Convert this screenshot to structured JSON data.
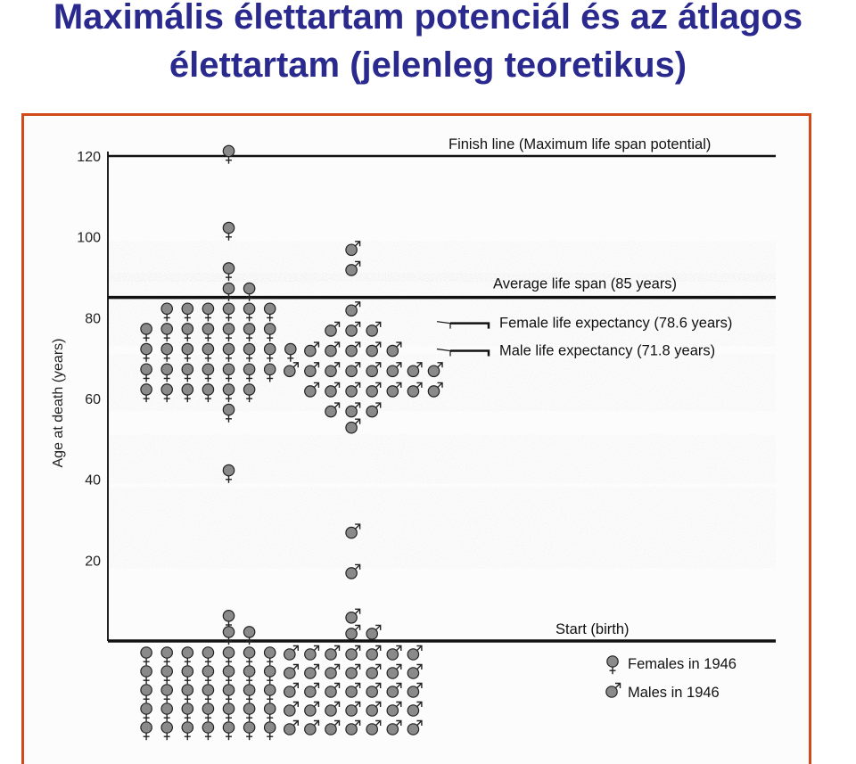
{
  "page": {
    "title_line1": "Maximális élettartam potenciál és az átlagos",
    "title_line2": "élettartam (jelenleg teoretikus)"
  },
  "chart_data": {
    "type": "scatter",
    "ylabel": "Age at death (years)",
    "ylim": [
      0,
      120
    ],
    "yticks": [
      20,
      40,
      60,
      80,
      100,
      120
    ],
    "lines": [
      {
        "y": 120,
        "label": "Finish line (Maximum life span potential)"
      },
      {
        "y": 85,
        "label": "Average life span (85 years)"
      },
      {
        "y": 0,
        "label": "Start (birth)"
      }
    ],
    "expectancy": [
      {
        "y": 78.6,
        "label": "Female life expectancy (78.6 years)"
      },
      {
        "y": 71.8,
        "label": "Male life expectancy (71.8 years)"
      }
    ],
    "legend": [
      {
        "symbol": "♀",
        "label": "Females in 1946"
      },
      {
        "symbol": "♂",
        "label": "Males in 1946"
      }
    ],
    "series": [
      {
        "name": "Females",
        "symbol": "♀",
        "points": [
          [
            5,
            121
          ],
          [
            5,
            102
          ],
          [
            5,
            92
          ],
          [
            5,
            87
          ],
          [
            6,
            87
          ],
          [
            2,
            82
          ],
          [
            3,
            82
          ],
          [
            4,
            82
          ],
          [
            5,
            82
          ],
          [
            6,
            82
          ],
          [
            7,
            82
          ],
          [
            1,
            77
          ],
          [
            2,
            77
          ],
          [
            3,
            77
          ],
          [
            4,
            77
          ],
          [
            5,
            77
          ],
          [
            6,
            77
          ],
          [
            7,
            77
          ],
          [
            1,
            72
          ],
          [
            2,
            72
          ],
          [
            3,
            72
          ],
          [
            4,
            72
          ],
          [
            5,
            72
          ],
          [
            6,
            72
          ],
          [
            7,
            72
          ],
          [
            8,
            72
          ],
          [
            1,
            67
          ],
          [
            2,
            67
          ],
          [
            3,
            67
          ],
          [
            4,
            67
          ],
          [
            5,
            67
          ],
          [
            6,
            67
          ],
          [
            7,
            67
          ],
          [
            1,
            62
          ],
          [
            2,
            62
          ],
          [
            3,
            62
          ],
          [
            4,
            62
          ],
          [
            5,
            62
          ],
          [
            6,
            62
          ],
          [
            5,
            57
          ],
          [
            5,
            42
          ],
          [
            5,
            6
          ],
          [
            5,
            2
          ],
          [
            6,
            2
          ]
        ]
      },
      {
        "name": "Males",
        "symbol": "♂",
        "points": [
          [
            11,
            97
          ],
          [
            11,
            92
          ],
          [
            11,
            82
          ],
          [
            10,
            77
          ],
          [
            11,
            77
          ],
          [
            12,
            77
          ],
          [
            9,
            72
          ],
          [
            10,
            72
          ],
          [
            11,
            72
          ],
          [
            12,
            72
          ],
          [
            13,
            72
          ],
          [
            8,
            67
          ],
          [
            9,
            67
          ],
          [
            10,
            67
          ],
          [
            11,
            67
          ],
          [
            12,
            67
          ],
          [
            13,
            67
          ],
          [
            14,
            67
          ],
          [
            15,
            67
          ],
          [
            9,
            62
          ],
          [
            10,
            62
          ],
          [
            11,
            62
          ],
          [
            12,
            62
          ],
          [
            13,
            62
          ],
          [
            14,
            62
          ],
          [
            15,
            62
          ],
          [
            10,
            57
          ],
          [
            11,
            57
          ],
          [
            12,
            57
          ],
          [
            11,
            53
          ],
          [
            11,
            27
          ],
          [
            11,
            17
          ],
          [
            11,
            6
          ],
          [
            11,
            2
          ],
          [
            12,
            2
          ]
        ]
      }
    ],
    "start_rows": [
      {
        "symbol": "♀",
        "cols": 7,
        "rows": 5
      },
      {
        "symbol": "♂",
        "cols": 7,
        "rows": 5
      }
    ]
  }
}
